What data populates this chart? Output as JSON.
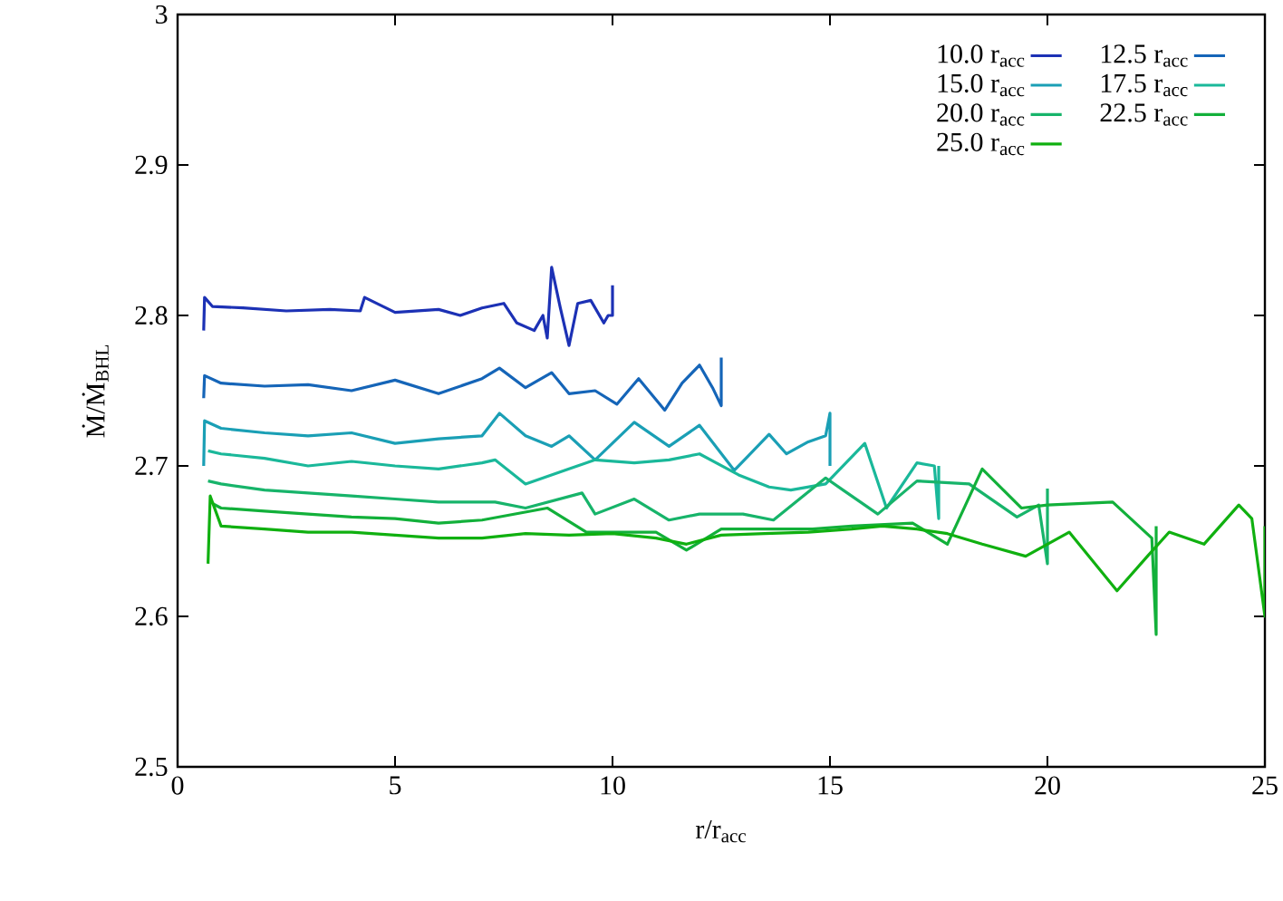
{
  "chart_data": {
    "type": "line",
    "xlabel": "r/r$_{acc}$",
    "ylabel": "Ṁ/Ṁ$_{BHL}$",
    "xlim": [
      0,
      25
    ],
    "ylim": [
      2.5,
      3
    ],
    "xticks": [
      0,
      5,
      10,
      15,
      20,
      25
    ],
    "yticks": [
      2.5,
      2.6,
      2.7,
      2.8,
      2.9,
      3
    ],
    "legend": "top right",
    "line_style": "solid",
    "series": [
      {
        "name": "10.0 r$_{acc}$",
        "color": "#1c31b5",
        "x": [
          0.6,
          0.62,
          0.8,
          1.5,
          2.5,
          3.5,
          4.2,
          4.3,
          5,
          6,
          6.5,
          7,
          7.5,
          7.8,
          8.2,
          8.4,
          8.5,
          8.6,
          8.8,
          9,
          9.2,
          9.5,
          9.8,
          9.9,
          10,
          10
        ],
        "values": [
          2.79,
          2.812,
          2.806,
          2.805,
          2.803,
          2.804,
          2.803,
          2.812,
          2.802,
          2.804,
          2.8,
          2.805,
          2.808,
          2.795,
          2.79,
          2.8,
          2.785,
          2.832,
          2.805,
          2.78,
          2.808,
          2.81,
          2.795,
          2.8,
          2.8,
          2.82
        ]
      },
      {
        "name": "12.5 r$_{acc}$",
        "color": "#1565b8",
        "x": [
          0.6,
          0.62,
          1,
          2,
          3,
          4,
          5,
          6,
          7,
          7.4,
          8,
          8.6,
          9,
          9.6,
          10.1,
          10.6,
          11.2,
          11.6,
          12,
          12.3,
          12.5,
          12.5
        ],
        "values": [
          2.745,
          2.76,
          2.755,
          2.753,
          2.754,
          2.75,
          2.757,
          2.748,
          2.758,
          2.765,
          2.752,
          2.762,
          2.748,
          2.75,
          2.741,
          2.758,
          2.737,
          2.755,
          2.767,
          2.752,
          2.74,
          2.772
        ]
      },
      {
        "name": "15.0 r$_{acc}$",
        "color": "#1a9fb5",
        "x": [
          0.6,
          0.62,
          1,
          2,
          3,
          4,
          5,
          6,
          7,
          7.4,
          8,
          8.6,
          9,
          9.6,
          10.5,
          11.3,
          12,
          12.8,
          13.6,
          14,
          14.5,
          14.9,
          15,
          15
        ],
        "values": [
          2.7,
          2.73,
          2.725,
          2.722,
          2.72,
          2.722,
          2.715,
          2.718,
          2.72,
          2.735,
          2.72,
          2.713,
          2.72,
          2.704,
          2.729,
          2.713,
          2.727,
          2.697,
          2.721,
          2.708,
          2.716,
          2.72,
          2.735,
          2.7
        ]
      },
      {
        "name": "17.5 r$_{acc}$",
        "color": "#1ab89a",
        "x": [
          0.7,
          1,
          2,
          3,
          4,
          5,
          6,
          7,
          7.3,
          8,
          9,
          9.6,
          10.5,
          11.3,
          12,
          12.9,
          13.6,
          14.1,
          14.9,
          15.8,
          16.3,
          17,
          17.4,
          17.5,
          17.5
        ],
        "values": [
          2.71,
          2.708,
          2.705,
          2.7,
          2.703,
          2.7,
          2.698,
          2.702,
          2.704,
          2.688,
          2.698,
          2.704,
          2.702,
          2.704,
          2.708,
          2.694,
          2.686,
          2.684,
          2.688,
          2.715,
          2.672,
          2.702,
          2.7,
          2.665,
          2.7
        ]
      },
      {
        "name": "20.0 r$_{acc}$",
        "color": "#17b46a",
        "x": [
          0.7,
          1,
          2,
          3,
          4,
          5,
          6,
          7,
          7.3,
          8,
          9.3,
          9.6,
          10.5,
          11.3,
          12,
          13,
          13.7,
          14.9,
          15.3,
          16.1,
          17,
          18.2,
          19.3,
          19.8,
          20,
          20
        ],
        "values": [
          2.69,
          2.688,
          2.684,
          2.682,
          2.68,
          2.678,
          2.676,
          2.676,
          2.676,
          2.672,
          2.682,
          2.668,
          2.678,
          2.664,
          2.668,
          2.668,
          2.664,
          2.692,
          2.684,
          2.668,
          2.69,
          2.688,
          2.666,
          2.674,
          2.635,
          2.685
        ]
      },
      {
        "name": "22.5 r$_{acc}$",
        "color": "#12b03a",
        "x": [
          0.8,
          1,
          2,
          3,
          4,
          5,
          6,
          7,
          8.5,
          9.4,
          11,
          11.7,
          12.5,
          13.6,
          14.6,
          15.5,
          16.9,
          17.7,
          18.5,
          19.4,
          20,
          21.5,
          22.4,
          22.5,
          22.5
        ],
        "values": [
          2.675,
          2.672,
          2.67,
          2.668,
          2.666,
          2.665,
          2.662,
          2.664,
          2.672,
          2.656,
          2.656,
          2.644,
          2.658,
          2.658,
          2.658,
          2.66,
          2.662,
          2.648,
          2.698,
          2.672,
          2.674,
          2.676,
          2.652,
          2.588,
          2.66
        ]
      },
      {
        "name": "25.0 r$_{acc}$",
        "color": "#10b010",
        "x": [
          0.7,
          0.75,
          1,
          2,
          3,
          4,
          5,
          6,
          7,
          8,
          9,
          10,
          11,
          11.7,
          12.5,
          13.5,
          14.5,
          15.5,
          16.2,
          17,
          17.7,
          18.5,
          19.5,
          20.5,
          21.6,
          22.3,
          22.8,
          23.6,
          24.4,
          24.7,
          25,
          25
        ],
        "values": [
          2.635,
          2.68,
          2.66,
          2.658,
          2.656,
          2.656,
          2.654,
          2.652,
          2.652,
          2.655,
          2.654,
          2.655,
          2.652,
          2.648,
          2.654,
          2.655,
          2.656,
          2.658,
          2.66,
          2.658,
          2.655,
          2.648,
          2.64,
          2.656,
          2.617,
          2.64,
          2.656,
          2.648,
          2.674,
          2.665,
          2.6,
          2.66
        ]
      }
    ]
  }
}
